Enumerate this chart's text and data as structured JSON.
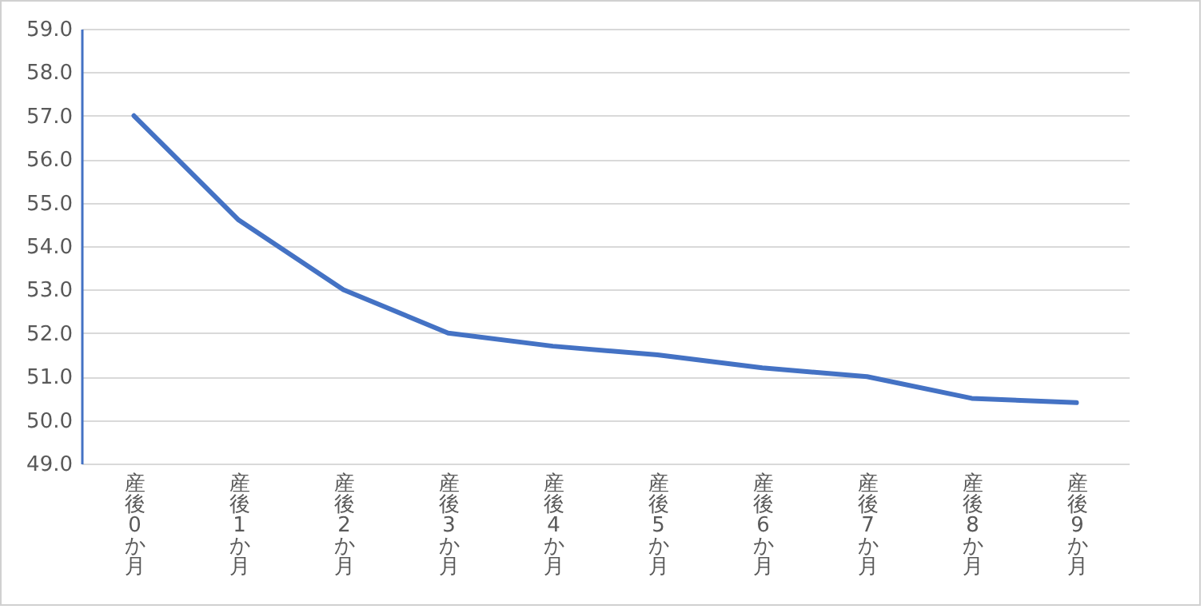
{
  "chart_data": {
    "type": "line",
    "categories": [
      "産後0か月",
      "産後1か月",
      "産後2か月",
      "産後3か月",
      "産後4か月",
      "産後5か月",
      "産後6か月",
      "産後7か月",
      "産後8か月",
      "産後9か月"
    ],
    "series": [
      {
        "color": "#4472c4",
        "values": [
          57.0,
          54.6,
          53.0,
          52.0,
          51.7,
          51.5,
          51.2,
          51.0,
          50.5,
          50.4
        ]
      }
    ],
    "ylim": [
      49,
      59
    ],
    "yticks": [
      {
        "value": 49,
        "label": "49.0"
      },
      {
        "value": 50,
        "label": "50.0"
      },
      {
        "value": 51,
        "label": "51.0"
      },
      {
        "value": 52,
        "label": "52.0"
      },
      {
        "value": 53,
        "label": "53.0"
      },
      {
        "value": 54,
        "label": "54.0"
      },
      {
        "value": 55,
        "label": "55.0"
      },
      {
        "value": 56,
        "label": "56.0"
      },
      {
        "value": 57,
        "label": "57.0"
      },
      {
        "value": 58,
        "label": "58.0"
      },
      {
        "value": 59,
        "label": "59.0"
      }
    ],
    "grid": "y",
    "marker": "none",
    "line_style": "solid"
  }
}
